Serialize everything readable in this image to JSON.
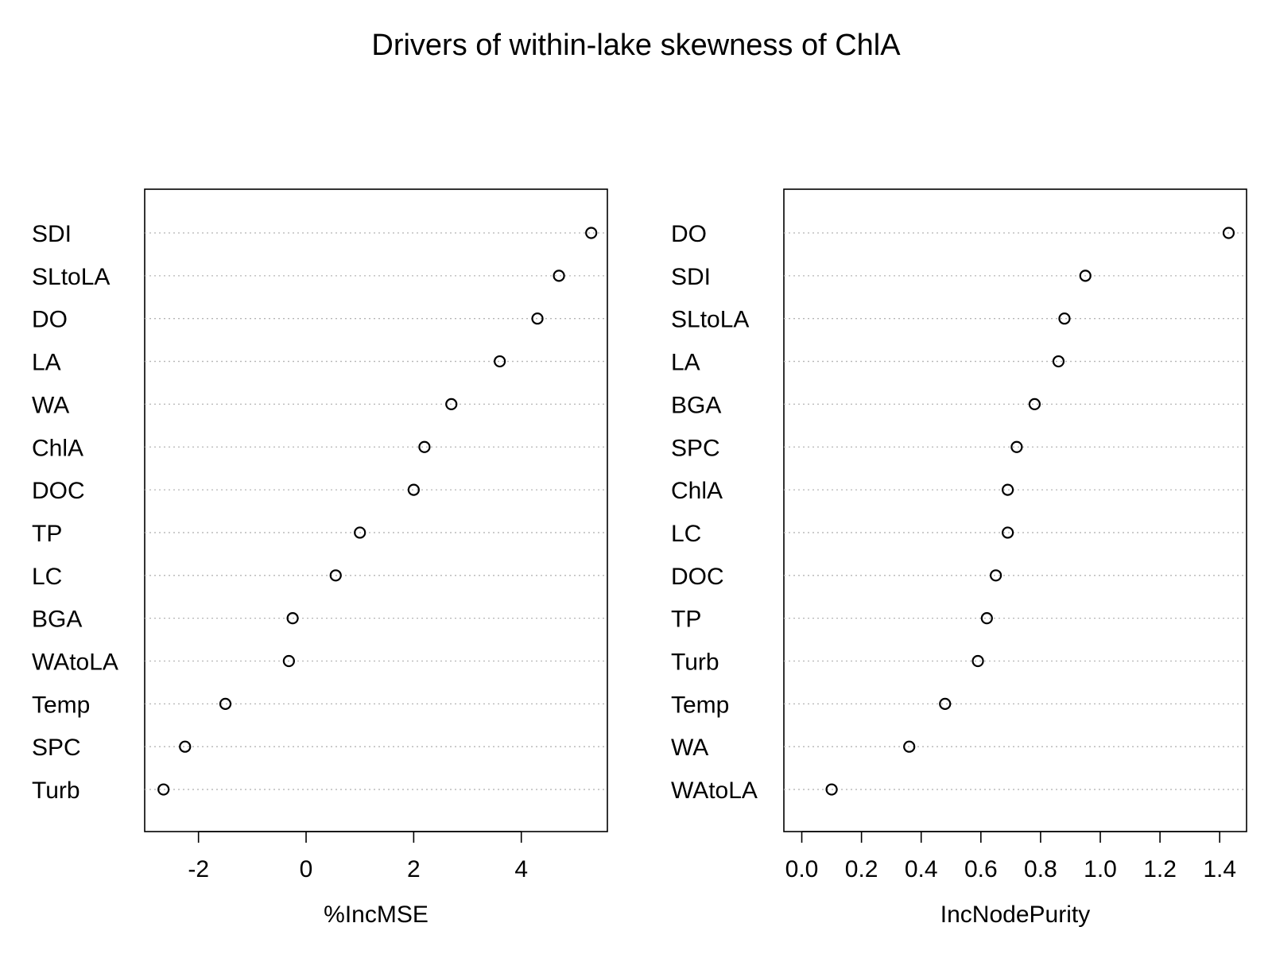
{
  "title": "Drivers of within-lake skewness of ChlA",
  "chart_data": [
    {
      "type": "dotplot",
      "xlabel": "%IncMSE",
      "xlim": [
        -3.0,
        5.6
      ],
      "ticks": [
        -2,
        0,
        2,
        4
      ],
      "tick_labels": [
        "-2",
        "0",
        "2",
        "4"
      ],
      "grid": "dotted horizontal lines per variable",
      "points": [
        {
          "label": "SDI",
          "value": 5.3
        },
        {
          "label": "SLtoLA",
          "value": 4.7
        },
        {
          "label": "DO",
          "value": 4.3
        },
        {
          "label": "LA",
          "value": 3.6
        },
        {
          "label": "WA",
          "value": 2.7
        },
        {
          "label": "ChlA",
          "value": 2.2
        },
        {
          "label": "DOC",
          "value": 2.0
        },
        {
          "label": "TP",
          "value": 1.0
        },
        {
          "label": "LC",
          "value": 0.55
        },
        {
          "label": "BGA",
          "value": -0.25
        },
        {
          "label": "WAtoLA",
          "value": -0.32
        },
        {
          "label": "Temp",
          "value": -1.5
        },
        {
          "label": "SPC",
          "value": -2.25
        },
        {
          "label": "Turb",
          "value": -2.65
        }
      ]
    },
    {
      "type": "dotplot",
      "xlabel": "IncNodePurity",
      "xlim": [
        -0.06,
        1.49
      ],
      "ticks": [
        0.0,
        0.2,
        0.4,
        0.6,
        0.8,
        1.0,
        1.2,
        1.4
      ],
      "tick_labels": [
        "0.0",
        "0.2",
        "0.4",
        "0.6",
        "0.8",
        "1.0",
        "1.2",
        "1.4"
      ],
      "grid": "dotted horizontal lines per variable",
      "points": [
        {
          "label": "DO",
          "value": 1.43
        },
        {
          "label": "SDI",
          "value": 0.95
        },
        {
          "label": "SLtoLA",
          "value": 0.88
        },
        {
          "label": "LA",
          "value": 0.86
        },
        {
          "label": "BGA",
          "value": 0.78
        },
        {
          "label": "SPC",
          "value": 0.72
        },
        {
          "label": "ChlA",
          "value": 0.69
        },
        {
          "label": "LC",
          "value": 0.69
        },
        {
          "label": "DOC",
          "value": 0.65
        },
        {
          "label": "TP",
          "value": 0.62
        },
        {
          "label": "Turb",
          "value": 0.59
        },
        {
          "label": "Temp",
          "value": 0.48
        },
        {
          "label": "WA",
          "value": 0.36
        },
        {
          "label": "WAtoLA",
          "value": 0.1
        }
      ]
    }
  ]
}
